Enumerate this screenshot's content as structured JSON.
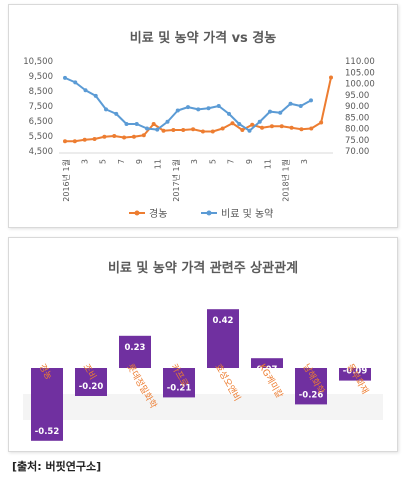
{
  "chart_data": [
    {
      "type": "line",
      "title": "비료 및 농약 가격 vs 경농",
      "x_labels": [
        "2016년 1월",
        "3",
        "5",
        "7",
        "9",
        "11",
        "2017년 1월",
        "3",
        "5",
        "7",
        "9",
        "11",
        "2018년 1월",
        "3"
      ],
      "left_axis": {
        "ticks": [
          "10,500",
          "9,500",
          "8,500",
          "7,500",
          "6,500",
          "5,500",
          "4,500"
        ],
        "ylim": [
          4500,
          10500
        ]
      },
      "right_axis": {
        "ticks": [
          "110.00",
          "105.00",
          "100.00",
          "95.00",
          "90.00",
          "85.00",
          "80.00",
          "75.00",
          "70.00"
        ],
        "ylim": [
          70,
          110
        ]
      },
      "series": [
        {
          "name": "경농",
          "axis": "left",
          "color": "#ED7D31",
          "values": [
            5150,
            5150,
            5250,
            5300,
            5450,
            5500,
            5400,
            5450,
            5550,
            6300,
            5850,
            5900,
            5900,
            5950,
            5800,
            5800,
            6000,
            6350,
            5900,
            6250,
            6050,
            6150,
            6150,
            6050,
            5950,
            6000,
            6400,
            9400
          ]
        },
        {
          "name": "비료 및 농약",
          "axis": "right",
          "color": "#5B9BD5",
          "values": [
            102.5,
            100.5,
            97.0,
            94.5,
            88.5,
            86.5,
            82.0,
            82.0,
            80.0,
            79.5,
            83.0,
            88.0,
            89.5,
            88.5,
            89.0,
            90.0,
            86.5,
            82.0,
            79.0,
            83.0,
            87.5,
            87.0,
            91.0,
            90.0,
            92.5
          ]
        }
      ],
      "legend": "bottom",
      "grid": false
    },
    {
      "type": "bar",
      "title": "비료 및 농약 가격 관련주 상관관계",
      "categories": [
        "경농",
        "조비",
        "롯데정밀화학",
        "카프로",
        "효성오앤비",
        "KG케미칼",
        "남해화학",
        "동부화재"
      ],
      "values": [
        -0.52,
        -0.2,
        0.23,
        -0.21,
        0.42,
        0.07,
        -0.26,
        -0.09
      ],
      "value_labels": [
        "-0.52",
        "-0.20",
        "0.23",
        "-0.21",
        "0.42",
        "0.07",
        "-0.26",
        "-0.09"
      ],
      "color": "#7030A0",
      "label_color": "#ED7D31"
    }
  ],
  "source": "[출처: 버핏연구소]"
}
